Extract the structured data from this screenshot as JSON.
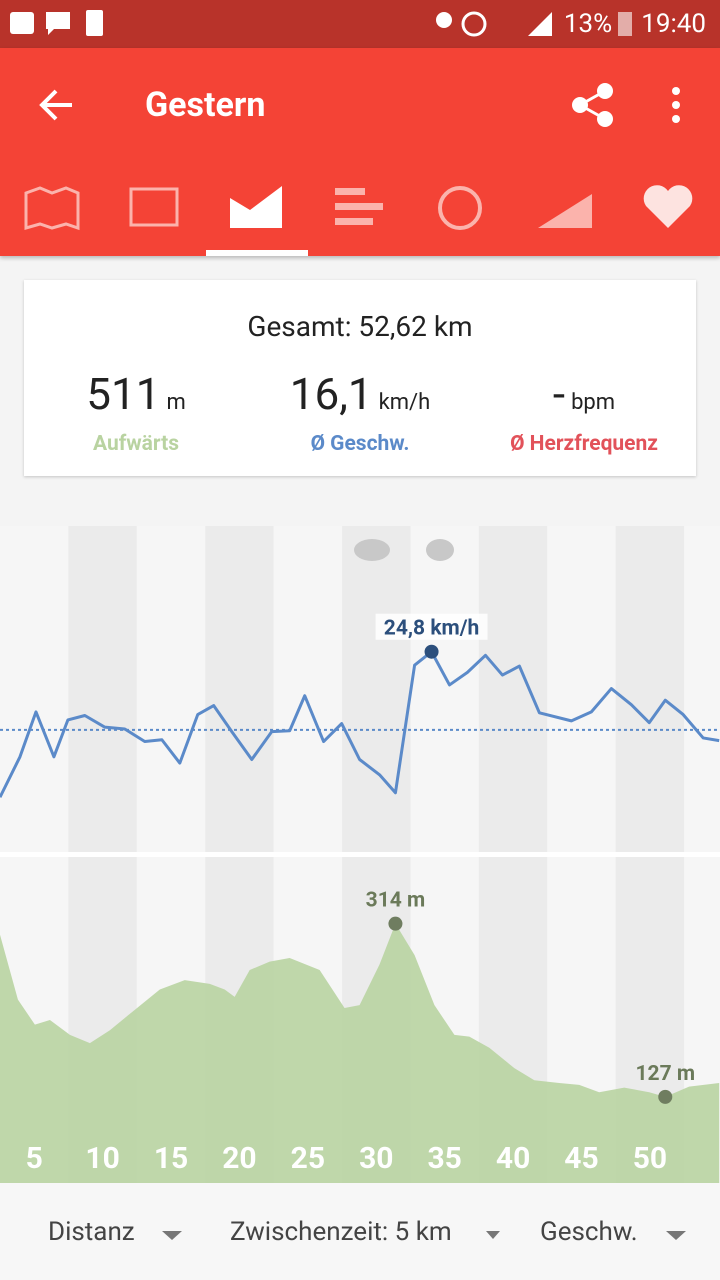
{
  "status_bar": {
    "battery": "13%",
    "time": "19:40"
  },
  "app_bar": {
    "title": "Gestern"
  },
  "summary": {
    "total": "Gesamt: 52,62 km",
    "stats": [
      {
        "value": "511",
        "unit": "m",
        "label": "Aufwärts"
      },
      {
        "value": "16,1",
        "unit": "km/h",
        "label": "Ø Geschw."
      },
      {
        "value": "-",
        "unit": "bpm",
        "label": "Ø Herzfrequenz"
      }
    ]
  },
  "speed_chart": {
    "type": "line",
    "color": "#5b8ac9",
    "xlim": [
      0,
      52.62
    ],
    "ylim": [
      2.5,
      38.8
    ],
    "x": [
      0,
      1.46,
      2.63,
      3.94,
      4.96,
      6.2,
      7.66,
      9.12,
      10.58,
      11.83,
      13.14,
      14.45,
      15.62,
      16.94,
      18.4,
      19.86,
      21.17,
      22.27,
      23.65,
      24.97,
      26.28,
      27.74,
      28.9,
      30.3,
      31.54,
      32.85,
      34.16,
      35.48,
      36.72,
      37.96,
      39.42,
      41.76,
      43.22,
      44.68,
      46.14,
      47.45,
      48.62,
      49.93,
      51.39,
      52.56
    ],
    "values": [
      8.6,
      13.1,
      18.1,
      13.1,
      17.2,
      17.7,
      16.4,
      16.2,
      14.8,
      15.0,
      12.4,
      17.8,
      18.8,
      15.9,
      12.8,
      15.9,
      16.0,
      19.9,
      14.8,
      16.8,
      12.8,
      11.1,
      9.1,
      23.3,
      24.8,
      21.1,
      22.5,
      24.4,
      22.2,
      23.2,
      18.0,
      17.1,
      18.1,
      20.7,
      18.9,
      16.9,
      19.4,
      17.8,
      15.2,
      14.9
    ],
    "average": 16.1,
    "max_label": "24,8 km/h"
  },
  "elevation_chart": {
    "type": "area",
    "color": "#bcd5a5",
    "xlim": [
      0,
      52.62
    ],
    "ylim": [
      34,
      386
    ],
    "x": [
      0,
      1.31,
      2.55,
      3.65,
      5.11,
      6.57,
      8.03,
      9.85,
      11.68,
      13.5,
      15.33,
      16.42,
      17.15,
      18.25,
      19.71,
      21.17,
      23.36,
      25.18,
      26.28,
      27.74,
      28.9,
      30.3,
      31.75,
      33.21,
      34.3,
      35.76,
      37.59,
      39.05,
      40.87,
      42.33,
      43.79,
      45.62,
      47.45,
      48.62,
      50.36,
      52.56
    ],
    "values": [
      302,
      232,
      205,
      210,
      194,
      185,
      199,
      221,
      243,
      253,
      249,
      243,
      235,
      264,
      273,
      277,
      264,
      223,
      226,
      270,
      314,
      280,
      226,
      194,
      192,
      180,
      158,
      145,
      142,
      140,
      132,
      137,
      132,
      127,
      138,
      142
    ],
    "max_label": "314 m",
    "min_label": "127 m"
  },
  "splits": [
    5,
    10,
    15,
    20,
    25,
    30,
    35,
    40,
    45,
    50
  ],
  "bottom_bar": {
    "items": [
      "Distanz",
      "Zwischenzeit: 5 km",
      "Geschw."
    ]
  }
}
